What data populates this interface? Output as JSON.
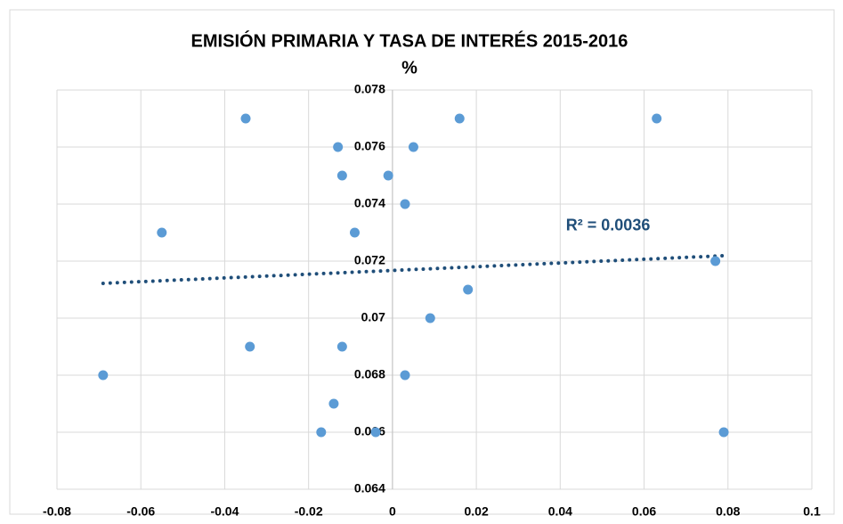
{
  "chart_data": {
    "type": "scatter",
    "title": "EMISIÓN PRIMARIA Y TASA DE INTERÉS 2015-2016",
    "subtitle": "%",
    "series": [
      {
        "color": "#5b9bd5",
        "x": [
          -0.069,
          -0.055,
          -0.035,
          -0.034,
          -0.017,
          -0.014,
          -0.012,
          -0.012,
          -0.013,
          -0.009,
          -0.004,
          -0.001,
          0.003,
          0.003,
          0.005,
          0.009,
          0.016,
          0.018,
          0.063,
          0.077,
          0.079
        ],
        "values": [
          0.068,
          0.073,
          0.077,
          0.069,
          0.066,
          0.067,
          0.069,
          0.075,
          0.076,
          0.073,
          0.066,
          0.075,
          0.074,
          0.068,
          0.076,
          0.07,
          0.077,
          0.071,
          0.077,
          0.072,
          0.066
        ]
      }
    ],
    "trendline": {
      "color": "#1f4e79",
      "x": [
        -0.069,
        0.079
      ],
      "values": [
        0.07122,
        0.07219
      ],
      "label": "R² = 0.0036"
    },
    "xlim": [
      -0.08,
      0.1
    ],
    "xticks": [
      -0.08,
      -0.06,
      -0.04,
      -0.02,
      0,
      0.02,
      0.04,
      0.06,
      0.08,
      0.1
    ],
    "ylim": [
      0.064,
      0.078
    ],
    "yticks": [
      0.064,
      0.066,
      0.068,
      0.07,
      0.072,
      0.074,
      0.076,
      0.078
    ],
    "grid": true
  }
}
